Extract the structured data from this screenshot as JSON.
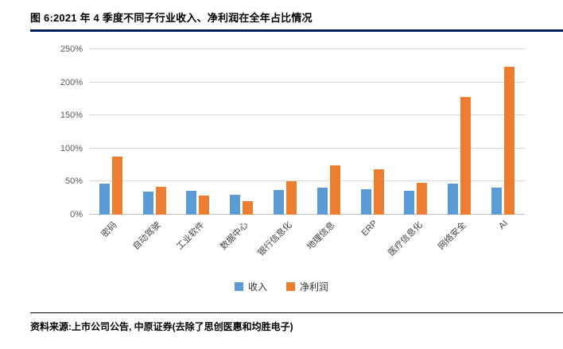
{
  "header": {
    "title": "图 6:2021 年 4 季度不同子行业收入、净利润在全年占比情况"
  },
  "colors": {
    "title_rule": "#002060",
    "revenue": "#5B9BD5",
    "net_profit": "#ED7D31",
    "gridline": "#D9D9D9"
  },
  "chart_data": {
    "type": "bar",
    "categories": [
      "密码",
      "自动驾驶",
      "工业软件",
      "数据中心",
      "银行信息化",
      "地理信息",
      "ERP",
      "医疗信息化",
      "网络安全",
      "AI"
    ],
    "series": [
      {
        "name": "收入",
        "color": "#5B9BD5",
        "values": [
          47,
          35,
          36,
          30,
          37,
          41,
          38,
          36,
          47,
          41
        ]
      },
      {
        "name": "净利润",
        "color": "#ED7D31",
        "values": [
          88,
          42,
          29,
          20,
          50,
          75,
          69,
          48,
          178,
          223
        ]
      }
    ],
    "title": "",
    "xlabel": "",
    "ylabel": "",
    "ylim": [
      0,
      250
    ],
    "ytick_step": 50,
    "ytick_suffix": "%",
    "grid": true,
    "legend_position": "bottom"
  },
  "footer": {
    "source": "资料来源:上市公司公告, 中原证券(去除了思创医惠和均胜电子)"
  }
}
